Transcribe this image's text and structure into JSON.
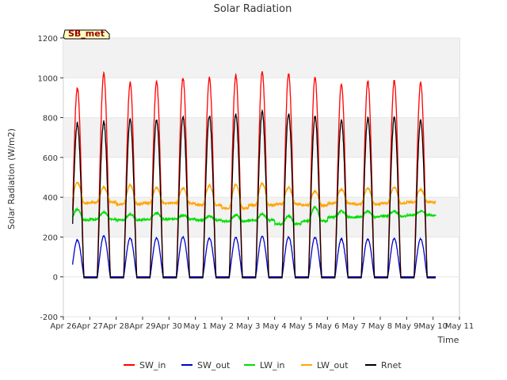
{
  "chart_data": {
    "type": "line",
    "title": "Solar Radiation",
    "xlabel": "Time",
    "ylabel": "Solar Radiation (W/m2)",
    "ylim": [
      -200,
      1200
    ],
    "yticks": [
      -200,
      0,
      200,
      400,
      600,
      800,
      1000,
      1200
    ],
    "xlim": [
      "Apr 26",
      "May 11"
    ],
    "xticks": [
      "Apr 26",
      "Apr 27",
      "Apr 28",
      "Apr 29",
      "Apr 30",
      "May 1",
      "May 2",
      "May 3",
      "May 4",
      "May 5",
      "May 6",
      "May 7",
      "May 8",
      "May 9",
      "May 10",
      "May 11"
    ],
    "site_label": "SB_met",
    "grid": true,
    "legend_position": "bottom",
    "days": [
      "Apr 26",
      "Apr 27",
      "Apr 28",
      "Apr 29",
      "Apr 30",
      "May 1",
      "May 2",
      "May 3",
      "May 4",
      "May 5",
      "May 6",
      "May 7",
      "May 8",
      "May 9"
    ],
    "series": [
      {
        "name": "SW_in",
        "color": "#ff0000",
        "daily_peak": [
          950,
          1020,
          975,
          980,
          1000,
          1000,
          1010,
          1030,
          1020,
          1000,
          970,
          980,
          985,
          975
        ],
        "night": 0
      },
      {
        "name": "SW_out",
        "color": "#0000cc",
        "daily_peak": [
          185,
          205,
          195,
          195,
          200,
          195,
          198,
          203,
          200,
          198,
          190,
          190,
          192,
          190
        ],
        "night": 0
      },
      {
        "name": "LW_in",
        "color": "#00dd00",
        "daily_peak": [
          340,
          325,
          315,
          320,
          310,
          305,
          310,
          315,
          305,
          350,
          330,
          330,
          330,
          330
        ],
        "night": [
          285,
          290,
          285,
          290,
          290,
          285,
          280,
          285,
          265,
          280,
          300,
          300,
          305,
          310
        ]
      },
      {
        "name": "LW_out",
        "color": "#ffa500",
        "daily_peak": [
          475,
          450,
          460,
          450,
          445,
          460,
          465,
          470,
          450,
          430,
          440,
          445,
          450,
          440
        ],
        "night": [
          370,
          375,
          365,
          370,
          370,
          360,
          345,
          360,
          365,
          360,
          370,
          365,
          370,
          375
        ]
      },
      {
        "name": "Rnet",
        "color": "#000000",
        "daily_peak": [
          770,
          780,
          790,
          790,
          805,
          810,
          815,
          830,
          820,
          805,
          785,
          795,
          800,
          785
        ],
        "night": -5
      }
    ]
  }
}
